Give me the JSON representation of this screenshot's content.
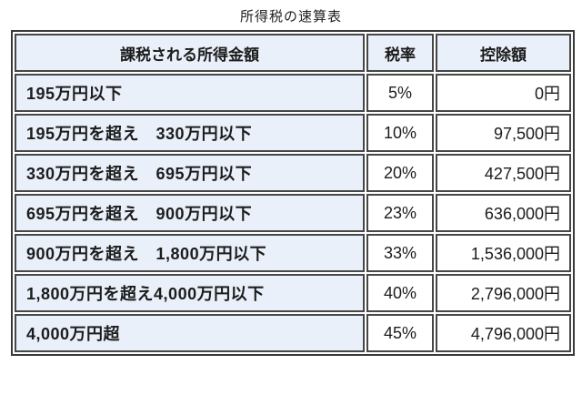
{
  "page": {
    "title": "所得税の速算表"
  },
  "colors": {
    "header_bg": "#e9f0fa",
    "income_col_bg": "#e9f0fa",
    "value_cell_bg": "#ffffff",
    "border": "#474747",
    "text": "#1c1c1c"
  },
  "chart_data": {
    "type": "table",
    "title": "所得税の速算表",
    "columns": [
      "課税される所得金額",
      "税率",
      "控除額"
    ],
    "rows": [
      {
        "income": "195万円以下",
        "rate": "5%",
        "deduction": "0円"
      },
      {
        "income": "195万円を超え　330万円以下",
        "rate": "10%",
        "deduction": "97,500円"
      },
      {
        "income": "330万円を超え　695万円以下",
        "rate": "20%",
        "deduction": "427,500円"
      },
      {
        "income": "695万円を超え　900万円以下",
        "rate": "23%",
        "deduction": "636,000円"
      },
      {
        "income": "900万円を超え　1,800万円以下",
        "rate": "33%",
        "deduction": "1,536,000円"
      },
      {
        "income": "1,800万円を超え4,000万円以下",
        "rate": "40%",
        "deduction": "2,796,000円"
      },
      {
        "income": "4,000万円超",
        "rate": "45%",
        "deduction": "4,796,000円"
      }
    ]
  }
}
